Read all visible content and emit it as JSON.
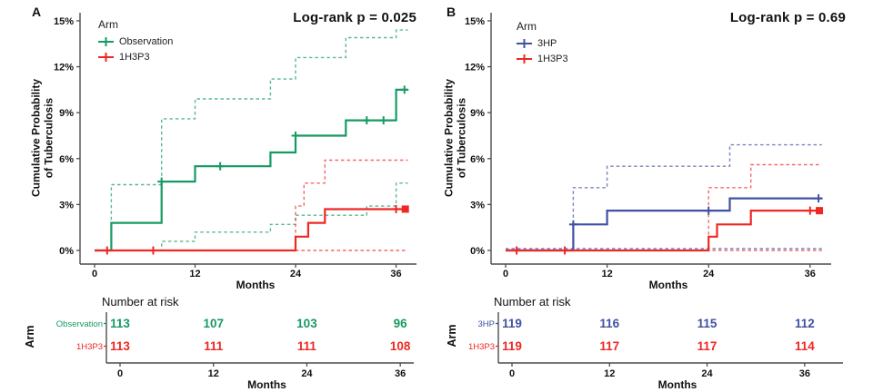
{
  "colors": {
    "green": "#169a63",
    "red": "#ee2824",
    "blue": "#3f51a3",
    "axis": "#4d4d4d",
    "text": "#111111"
  },
  "panels": [
    {
      "letter": "A",
      "ylabel_lines": [
        "Cumulative Probability",
        "of Tuberculosis"
      ],
      "legend": {
        "title": "Arm",
        "items": [
          {
            "label": "Observation",
            "color": "green"
          },
          {
            "label": "1H3P3",
            "color": "red"
          }
        ]
      },
      "risk_table": {
        "title": "Number at risk",
        "axis_label": "Arm",
        "xlabel": "Months",
        "xticks": [
          0,
          12,
          24,
          36
        ],
        "rows": [
          {
            "label": "Observation",
            "color": "green",
            "values": [
              "113",
              "107",
              "103",
              "96"
            ]
          },
          {
            "label": "1H3P3",
            "color": "red",
            "values": [
              "113",
              "111",
              "111",
              "108"
            ]
          }
        ]
      }
    },
    {
      "letter": "B",
      "ylabel_lines": [
        "Cumulative Probability",
        "of Tuberculosis"
      ],
      "legend": {
        "title": "Arm",
        "items": [
          {
            "label": "3HP",
            "color": "blue"
          },
          {
            "label": "1H3P3",
            "color": "red"
          }
        ]
      },
      "risk_table": {
        "title": "Number at risk",
        "axis_label": "Arm",
        "xlabel": "Months",
        "xticks": [
          0,
          12,
          24,
          36
        ],
        "rows": [
          {
            "label": "3HP",
            "color": "blue",
            "values": [
              "119",
              "116",
              "115",
              "112"
            ]
          },
          {
            "label": "1H3P3",
            "color": "red",
            "values": [
              "119",
              "117",
              "117",
              "114"
            ]
          }
        ]
      }
    }
  ],
  "chart_data": [
    {
      "type": "line",
      "subtype": "kaplan-meier-cumulative-incidence",
      "panel": "A",
      "title": "Log-rank p = 0.025",
      "xlabel": "Months",
      "ylabel": "Cumulative Probability of Tuberculosis",
      "xlim": [
        -1.5,
        38.5
      ],
      "ylim": [
        0,
        15.5
      ],
      "xticks": [
        0,
        12,
        24,
        36
      ],
      "yticks": [
        [
          0,
          "0%"
        ],
        [
          3,
          "3%"
        ],
        [
          6,
          "6%"
        ],
        [
          9,
          "9%"
        ],
        [
          12,
          "12%"
        ],
        [
          15,
          "15%"
        ]
      ],
      "grid": false,
      "legend_position": "top-left-inside",
      "series": [
        {
          "name": "Observation 95% CI upper",
          "type": "ci",
          "color": "green",
          "style": "dashed",
          "steps_month_pct": [
            [
              0,
              0
            ],
            [
              2,
              4.3
            ],
            [
              8,
              8.6
            ],
            [
              12,
              9.9
            ],
            [
              21,
              11.2
            ],
            [
              24,
              12.6
            ],
            [
              30,
              13.9
            ],
            [
              36,
              14.4
            ],
            [
              37.4,
              14.4
            ]
          ]
        },
        {
          "name": "Observation 95% CI lower",
          "type": "ci",
          "color": "green",
          "style": "dashed",
          "steps_month_pct": [
            [
              0,
              0
            ],
            [
              8,
              0.6
            ],
            [
              12,
              1.2
            ],
            [
              21,
              1.7
            ],
            [
              24,
              2.3
            ],
            [
              32.5,
              2.9
            ],
            [
              36,
              4.4
            ],
            [
              37.4,
              4.4
            ]
          ]
        },
        {
          "name": "1H3P3 95% CI upper",
          "type": "ci",
          "color": "red",
          "style": "dashed",
          "steps_month_pct": [
            [
              0,
              0
            ],
            [
              24,
              2.9
            ],
            [
              25,
              4.4
            ],
            [
              27.5,
              5.9
            ],
            [
              37.4,
              5.9
            ]
          ]
        },
        {
          "name": "1H3P3 95% CI lower",
          "type": "ci",
          "color": "red",
          "style": "dashed",
          "steps_month_pct": [
            [
              0,
              0
            ],
            [
              37.4,
              0
            ]
          ]
        },
        {
          "name": "Observation",
          "type": "estimate",
          "color": "green",
          "style": "solid",
          "steps_month_pct": [
            [
              0,
              0
            ],
            [
              2,
              1.8
            ],
            [
              8,
              4.5
            ],
            [
              12,
              5.5
            ],
            [
              21,
              6.4
            ],
            [
              24,
              7.5
            ],
            [
              30,
              8.5
            ],
            [
              36,
              10.5
            ],
            [
              37.4,
              10.5
            ]
          ],
          "censor_marks": [
            [
              8,
              4.5
            ],
            [
              15,
              5.5
            ],
            [
              24,
              7.5
            ],
            [
              32.5,
              8.5
            ],
            [
              34.5,
              8.5
            ],
            [
              37,
              10.5
            ]
          ]
        },
        {
          "name": "1H3P3",
          "type": "estimate",
          "color": "red",
          "style": "solid",
          "steps_month_pct": [
            [
              0,
              0
            ],
            [
              24,
              0.9
            ],
            [
              25.5,
              1.8
            ],
            [
              27.5,
              2.7
            ],
            [
              37.4,
              2.7
            ]
          ],
          "censor_marks": [
            [
              1.5,
              0
            ],
            [
              7,
              0
            ],
            [
              36,
              2.7
            ]
          ],
          "end_square": [
            37.1,
            2.7
          ]
        }
      ]
    },
    {
      "type": "line",
      "subtype": "kaplan-meier-cumulative-incidence",
      "panel": "B",
      "title": "Log-rank p = 0.69",
      "xlabel": "Months",
      "ylabel": "Cumulative Probability of Tuberculosis",
      "xlim": [
        -1.5,
        38.5
      ],
      "ylim": [
        0,
        15.5
      ],
      "xticks": [
        0,
        12,
        24,
        36
      ],
      "yticks": [
        [
          0,
          "0%"
        ],
        [
          3,
          "3%"
        ],
        [
          6,
          "6%"
        ],
        [
          9,
          "9%"
        ],
        [
          12,
          "12%"
        ],
        [
          15,
          "15%"
        ]
      ],
      "grid": false,
      "legend_position": "top-left-inside",
      "series": [
        {
          "name": "3HP 95% CI upper",
          "type": "ci",
          "color": "blue",
          "style": "dashed",
          "steps_month_pct": [
            [
              0,
              0
            ],
            [
              8,
              4.1
            ],
            [
              12,
              5.5
            ],
            [
              26.5,
              6.9
            ],
            [
              37.4,
              6.9
            ]
          ]
        },
        {
          "name": "3HP 95% CI lower",
          "type": "ci",
          "color": "blue",
          "style": "dashed",
          "steps_month_pct": [
            [
              0,
              0
            ],
            [
              37.4,
              0
            ]
          ]
        },
        {
          "name": "1H3P3 95% CI upper",
          "type": "ci",
          "color": "red",
          "style": "dashed",
          "steps_month_pct": [
            [
              0,
              0
            ],
            [
              24,
              4.1
            ],
            [
              29,
              5.6
            ],
            [
              37.4,
              5.6
            ]
          ]
        },
        {
          "name": "1H3P3 95% CI lower",
          "type": "ci",
          "color": "red",
          "style": "dashed",
          "steps_month_pct": [
            [
              0,
              0
            ],
            [
              37.4,
              0
            ]
          ]
        },
        {
          "name": "3HP",
          "type": "estimate",
          "color": "blue",
          "style": "solid",
          "steps_month_pct": [
            [
              0,
              0
            ],
            [
              8,
              1.7
            ],
            [
              12,
              2.6
            ],
            [
              26.5,
              3.4
            ],
            [
              37.4,
              3.4
            ]
          ],
          "censor_marks": [
            [
              8,
              1.7
            ],
            [
              24,
              2.6
            ],
            [
              37,
              3.4
            ]
          ]
        },
        {
          "name": "1H3P3",
          "type": "estimate",
          "color": "red",
          "style": "solid",
          "steps_month_pct": [
            [
              0,
              0
            ],
            [
              24,
              0.9
            ],
            [
              25,
              1.7
            ],
            [
              29,
              2.6
            ],
            [
              37.4,
              2.6
            ]
          ],
          "censor_marks": [
            [
              1.3,
              0
            ],
            [
              7,
              0
            ],
            [
              36,
              2.6
            ]
          ],
          "end_square": [
            37.1,
            2.6
          ]
        }
      ]
    }
  ]
}
